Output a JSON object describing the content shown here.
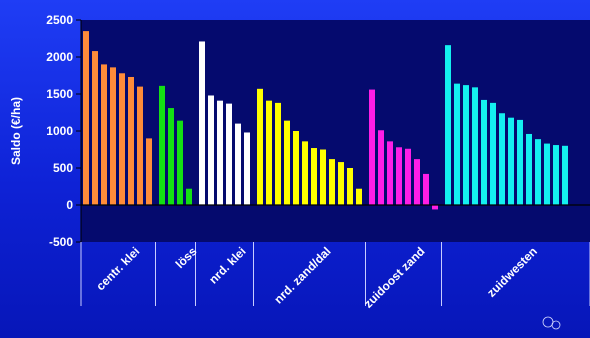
{
  "chart_data": {
    "type": "bar",
    "ylabel": "Saldo (€/ha)",
    "ylim": [
      -500,
      2500
    ],
    "yticks": [
      2500,
      2000,
      1500,
      1000,
      500,
      0,
      -500
    ],
    "grid": false,
    "legend": "none",
    "groups": [
      {
        "name": "centr. klei",
        "color": "#ff8c3a",
        "values": [
          2350,
          2080,
          1900,
          1860,
          1780,
          1730,
          1600,
          900
        ]
      },
      {
        "name": "löss",
        "color": "#14e014",
        "values": [
          1610,
          1310,
          1140,
          220
        ]
      },
      {
        "name": "nrd. klei",
        "color": "#ffffff",
        "values": [
          2210,
          1480,
          1410,
          1370,
          1100,
          980
        ]
      },
      {
        "name": "nrd. zand/dal",
        "color": "#ffff00",
        "values": [
          1570,
          1410,
          1380,
          1140,
          1000,
          860,
          770,
          750,
          620,
          580,
          500,
          220
        ]
      },
      {
        "name": "zuidoost zand",
        "color": "#ff1ee6",
        "values": [
          1560,
          1010,
          860,
          780,
          760,
          620,
          420,
          -60
        ]
      },
      {
        "name": "zuidwesten",
        "color": "#14f0f0",
        "values": [
          2160,
          1640,
          1620,
          1590,
          1420,
          1380,
          1240,
          1180,
          1150,
          960,
          890,
          830,
          810,
          800
        ]
      }
    ]
  }
}
